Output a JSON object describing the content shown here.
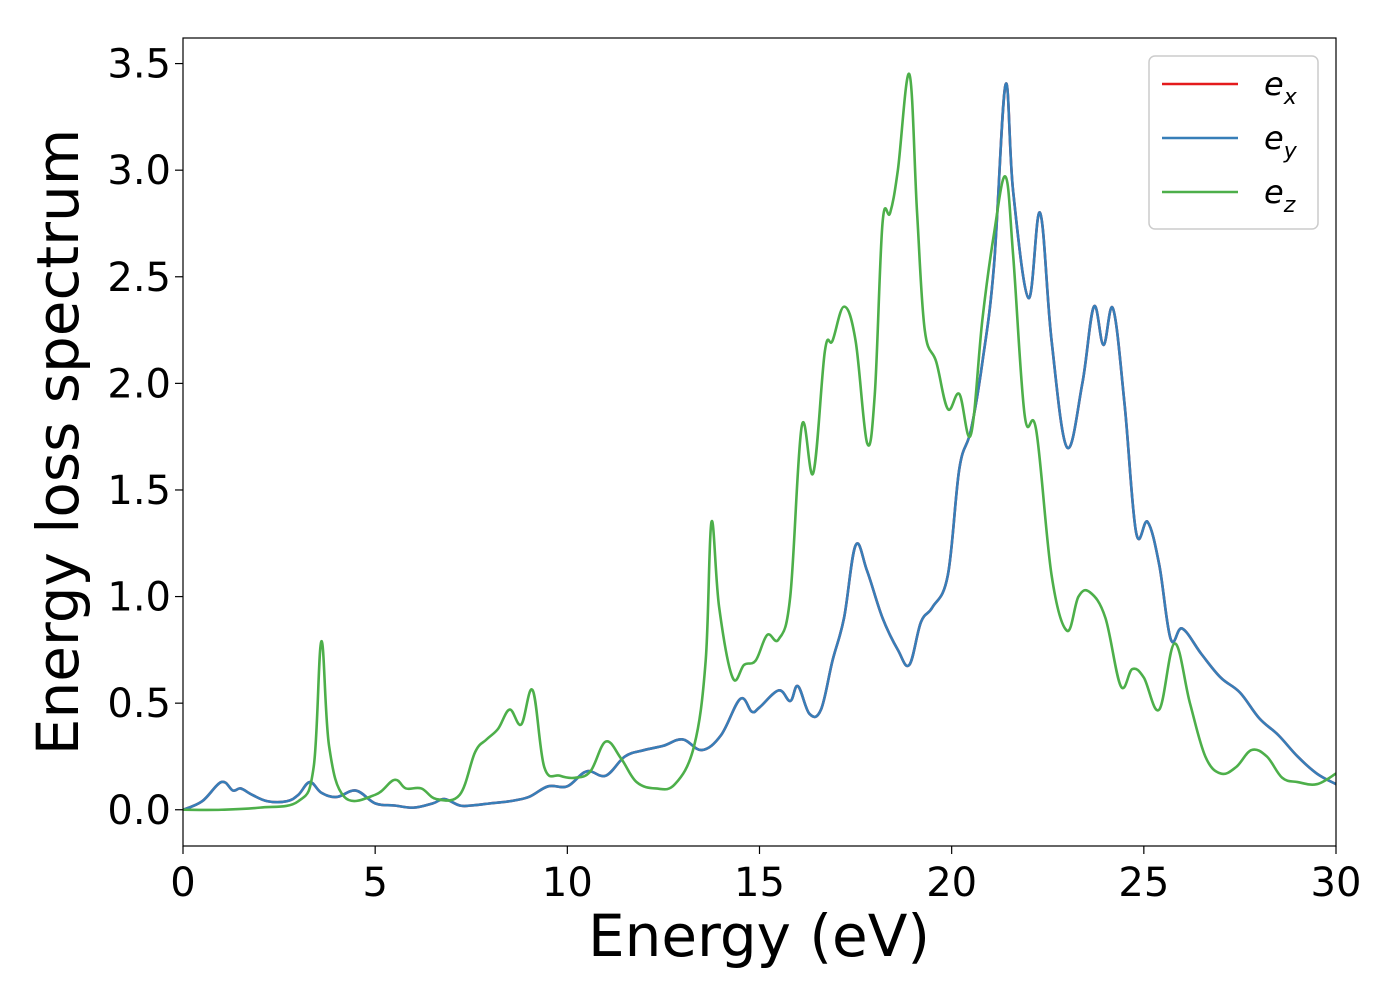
{
  "chart_data": {
    "type": "line",
    "title": "",
    "xlabel": "Energy (eV)",
    "ylabel": "Energy loss spectrum",
    "xlim": [
      0,
      30
    ],
    "ylim": [
      -0.17,
      3.62
    ],
    "xticks": [
      0,
      5,
      10,
      15,
      20,
      25,
      30
    ],
    "xtick_labels": [
      "0",
      "5",
      "10",
      "15",
      "20",
      "25",
      "30"
    ],
    "yticks": [
      0.0,
      0.5,
      1.0,
      1.5,
      2.0,
      2.5,
      3.0,
      3.5
    ],
    "ytick_labels": [
      "0.0",
      "0.5",
      "1.0",
      "1.5",
      "2.0",
      "2.5",
      "3.0",
      "3.5"
    ],
    "grid": false,
    "legend_position": "top-right",
    "series": [
      {
        "name": "e_x",
        "legend_base": "e",
        "legend_sub": "x",
        "color": "#e41a1c",
        "x": [
          0.0,
          0.5,
          1.0,
          1.3,
          1.5,
          1.8,
          2.2,
          2.7,
          3.0,
          3.3,
          3.6,
          4.0,
          4.5,
          5.0,
          5.5,
          6.0,
          6.5,
          6.8,
          7.2,
          7.5,
          8.0,
          8.5,
          9.0,
          9.5,
          10.0,
          10.5,
          11.0,
          11.5,
          12.0,
          12.5,
          13.0,
          13.5,
          14.0,
          14.5,
          14.8,
          15.0,
          15.5,
          15.8,
          16.0,
          16.3,
          16.6,
          16.9,
          17.2,
          17.5,
          17.8,
          18.2,
          18.6,
          18.9,
          19.2,
          19.5,
          19.9,
          20.2,
          20.5,
          20.8,
          21.1,
          21.4,
          21.6,
          22.0,
          22.3,
          22.6,
          23.0,
          23.4,
          23.7,
          23.95,
          24.2,
          24.5,
          24.8,
          25.1,
          25.4,
          25.7,
          26.0,
          26.5,
          27.0,
          27.5,
          28.0,
          28.5,
          29.0,
          29.5,
          30.0
        ],
        "y": [
          0.0,
          0.04,
          0.13,
          0.09,
          0.1,
          0.07,
          0.04,
          0.04,
          0.07,
          0.13,
          0.08,
          0.06,
          0.09,
          0.03,
          0.02,
          0.01,
          0.03,
          0.05,
          0.02,
          0.02,
          0.03,
          0.04,
          0.06,
          0.11,
          0.11,
          0.18,
          0.16,
          0.25,
          0.28,
          0.3,
          0.33,
          0.28,
          0.35,
          0.52,
          0.46,
          0.48,
          0.56,
          0.51,
          0.58,
          0.45,
          0.47,
          0.7,
          0.9,
          1.24,
          1.12,
          0.9,
          0.75,
          0.68,
          0.88,
          0.95,
          1.1,
          1.6,
          1.78,
          2.1,
          2.55,
          3.4,
          2.9,
          2.4,
          2.8,
          2.2,
          1.7,
          2.0,
          2.36,
          2.18,
          2.35,
          1.9,
          1.3,
          1.35,
          1.15,
          0.8,
          0.85,
          0.73,
          0.62,
          0.55,
          0.43,
          0.35,
          0.25,
          0.17,
          0.12
        ]
      },
      {
        "name": "e_y",
        "legend_base": "e",
        "legend_sub": "y",
        "color": "#377eb8",
        "x": [
          0.0,
          0.5,
          1.0,
          1.3,
          1.5,
          1.8,
          2.2,
          2.7,
          3.0,
          3.3,
          3.6,
          4.0,
          4.5,
          5.0,
          5.5,
          6.0,
          6.5,
          6.8,
          7.2,
          7.5,
          8.0,
          8.5,
          9.0,
          9.5,
          10.0,
          10.5,
          11.0,
          11.5,
          12.0,
          12.5,
          13.0,
          13.5,
          14.0,
          14.5,
          14.8,
          15.0,
          15.5,
          15.8,
          16.0,
          16.3,
          16.6,
          16.9,
          17.2,
          17.5,
          17.8,
          18.2,
          18.6,
          18.9,
          19.2,
          19.5,
          19.9,
          20.2,
          20.5,
          20.8,
          21.1,
          21.4,
          21.6,
          22.0,
          22.3,
          22.6,
          23.0,
          23.4,
          23.7,
          23.95,
          24.2,
          24.5,
          24.8,
          25.1,
          25.4,
          25.7,
          26.0,
          26.5,
          27.0,
          27.5,
          28.0,
          28.5,
          29.0,
          29.5,
          30.0
        ],
        "y": [
          0.0,
          0.04,
          0.13,
          0.09,
          0.1,
          0.07,
          0.04,
          0.04,
          0.07,
          0.13,
          0.08,
          0.06,
          0.09,
          0.03,
          0.02,
          0.01,
          0.03,
          0.05,
          0.02,
          0.02,
          0.03,
          0.04,
          0.06,
          0.11,
          0.11,
          0.18,
          0.16,
          0.25,
          0.28,
          0.3,
          0.33,
          0.28,
          0.35,
          0.52,
          0.46,
          0.48,
          0.56,
          0.51,
          0.58,
          0.45,
          0.47,
          0.7,
          0.9,
          1.24,
          1.12,
          0.9,
          0.75,
          0.68,
          0.88,
          0.95,
          1.1,
          1.6,
          1.78,
          2.1,
          2.55,
          3.4,
          2.9,
          2.4,
          2.8,
          2.2,
          1.7,
          2.0,
          2.36,
          2.18,
          2.35,
          1.9,
          1.3,
          1.35,
          1.15,
          0.8,
          0.85,
          0.73,
          0.62,
          0.55,
          0.43,
          0.35,
          0.25,
          0.17,
          0.12
        ]
      },
      {
        "name": "e_z",
        "legend_base": "e",
        "legend_sub": "z",
        "color": "#4daf4a",
        "x": [
          0.0,
          1.0,
          2.0,
          3.0,
          3.4,
          3.6,
          3.8,
          4.2,
          5.0,
          5.5,
          5.8,
          6.2,
          6.6,
          7.2,
          7.6,
          7.9,
          8.2,
          8.5,
          8.8,
          9.1,
          9.4,
          9.8,
          10.2,
          10.6,
          11.0,
          11.4,
          11.8,
          12.3,
          12.8,
          13.3,
          13.6,
          13.75,
          13.95,
          14.3,
          14.6,
          14.9,
          15.2,
          15.5,
          15.8,
          16.1,
          16.4,
          16.7,
          16.9,
          17.2,
          17.5,
          17.8,
          18.0,
          18.2,
          18.4,
          18.6,
          18.9,
          19.1,
          19.3,
          19.6,
          19.9,
          20.2,
          20.5,
          20.8,
          21.1,
          21.4,
          21.6,
          21.9,
          22.2,
          22.6,
          23.0,
          23.3,
          23.6,
          24.0,
          24.4,
          24.7,
          25.0,
          25.4,
          25.8,
          26.2,
          26.6,
          27.0,
          27.4,
          27.8,
          28.2,
          28.6,
          29.0,
          29.5,
          30.0
        ],
        "y": [
          0.0,
          0.0,
          0.01,
          0.04,
          0.2,
          0.79,
          0.3,
          0.06,
          0.07,
          0.14,
          0.1,
          0.1,
          0.05,
          0.07,
          0.27,
          0.33,
          0.38,
          0.47,
          0.4,
          0.56,
          0.2,
          0.16,
          0.15,
          0.18,
          0.32,
          0.24,
          0.13,
          0.1,
          0.12,
          0.3,
          0.7,
          1.35,
          0.95,
          0.62,
          0.68,
          0.7,
          0.82,
          0.8,
          1.0,
          1.8,
          1.58,
          2.15,
          2.2,
          2.36,
          2.2,
          1.72,
          1.95,
          2.75,
          2.8,
          3.0,
          3.45,
          2.8,
          2.25,
          2.1,
          1.88,
          1.95,
          1.76,
          2.3,
          2.7,
          2.97,
          2.6,
          1.85,
          1.78,
          1.1,
          0.84,
          1.0,
          1.02,
          0.9,
          0.58,
          0.66,
          0.62,
          0.47,
          0.78,
          0.5,
          0.25,
          0.17,
          0.2,
          0.28,
          0.25,
          0.15,
          0.13,
          0.12,
          0.17
        ]
      }
    ]
  }
}
